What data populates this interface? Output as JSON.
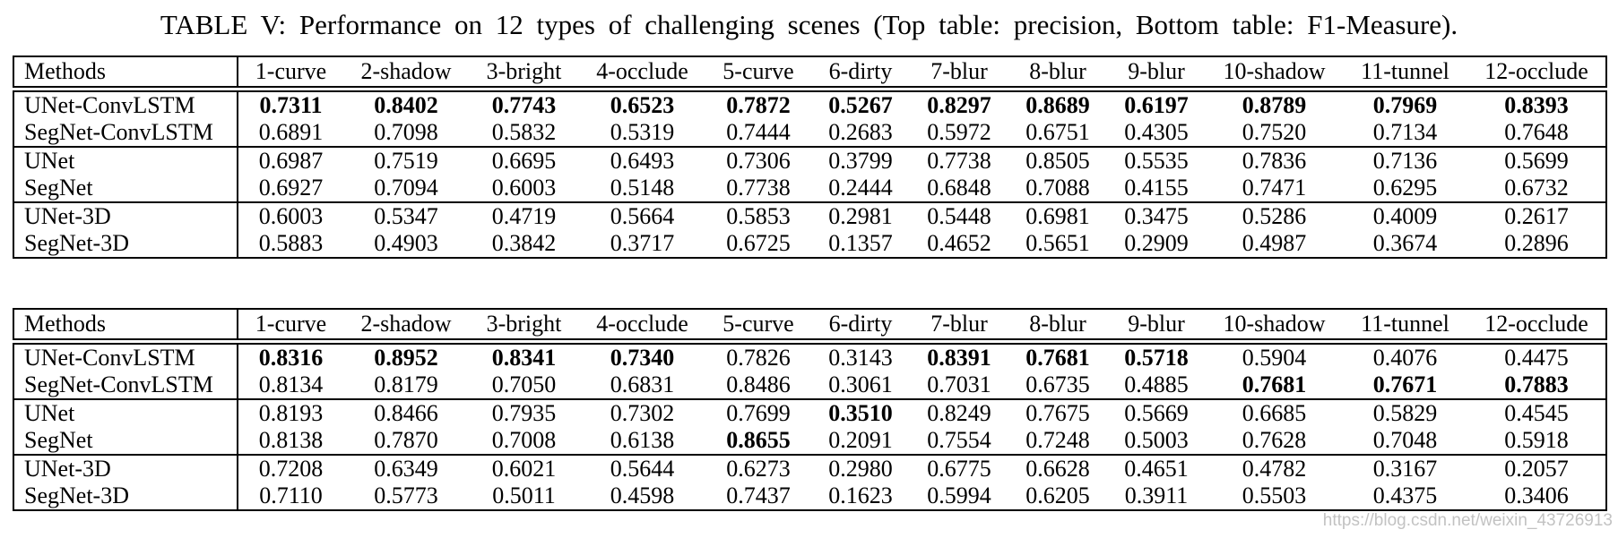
{
  "title": "TABLE V: Performance on 12 types of challenging scenes (Top table: precision, Bottom table: F1-Measure).",
  "watermark": "https://blog.csdn.net/weixin_43726913",
  "columns": [
    "Methods",
    "1-curve",
    "2-shadow",
    "3-bright",
    "4-occlude",
    "5-curve",
    "6-dirty",
    "7-blur",
    "8-blur",
    "9-blur",
    "10-shadow",
    "11-tunnel",
    "12-occlude"
  ],
  "tables": [
    {
      "metric": "precision",
      "rows": [
        {
          "method": "UNet-ConvLSTM",
          "values": [
            "0.7311",
            "0.8402",
            "0.7743",
            "0.6523",
            "0.7872",
            "0.5267",
            "0.8297",
            "0.8689",
            "0.6197",
            "0.8789",
            "0.7969",
            "0.8393"
          ],
          "bold": [
            true,
            true,
            true,
            true,
            true,
            true,
            true,
            true,
            true,
            true,
            true,
            true
          ],
          "group_start": false
        },
        {
          "method": "SegNet-ConvLSTM",
          "values": [
            "0.6891",
            "0.7098",
            "0.5832",
            "0.5319",
            "0.7444",
            "0.2683",
            "0.5972",
            "0.6751",
            "0.4305",
            "0.7520",
            "0.7134",
            "0.7648"
          ],
          "bold": [
            false,
            false,
            false,
            false,
            false,
            false,
            false,
            false,
            false,
            false,
            false,
            false
          ],
          "group_start": false
        },
        {
          "method": "UNet",
          "values": [
            "0.6987",
            "0.7519",
            "0.6695",
            "0.6493",
            "0.7306",
            "0.3799",
            "0.7738",
            "0.8505",
            "0.5535",
            "0.7836",
            "0.7136",
            "0.5699"
          ],
          "bold": [
            false,
            false,
            false,
            false,
            false,
            false,
            false,
            false,
            false,
            false,
            false,
            false
          ],
          "group_start": true
        },
        {
          "method": "SegNet",
          "values": [
            "0.6927",
            "0.7094",
            "0.6003",
            "0.5148",
            "0.7738",
            "0.2444",
            "0.6848",
            "0.7088",
            "0.4155",
            "0.7471",
            "0.6295",
            "0.6732"
          ],
          "bold": [
            false,
            false,
            false,
            false,
            false,
            false,
            false,
            false,
            false,
            false,
            false,
            false
          ],
          "group_start": false
        },
        {
          "method": "UNet-3D",
          "values": [
            "0.6003",
            "0.5347",
            "0.4719",
            "0.5664",
            "0.5853",
            "0.2981",
            "0.5448",
            "0.6981",
            "0.3475",
            "0.5286",
            "0.4009",
            "0.2617"
          ],
          "bold": [
            false,
            false,
            false,
            false,
            false,
            false,
            false,
            false,
            false,
            false,
            false,
            false
          ],
          "group_start": true
        },
        {
          "method": "SegNet-3D",
          "values": [
            "0.5883",
            "0.4903",
            "0.3842",
            "0.3717",
            "0.6725",
            "0.1357",
            "0.4652",
            "0.5651",
            "0.2909",
            "0.4987",
            "0.3674",
            "0.2896"
          ],
          "bold": [
            false,
            false,
            false,
            false,
            false,
            false,
            false,
            false,
            false,
            false,
            false,
            false
          ],
          "group_start": false
        }
      ]
    },
    {
      "metric": "F1-Measure",
      "rows": [
        {
          "method": "UNet-ConvLSTM",
          "values": [
            "0.8316",
            "0.8952",
            "0.8341",
            "0.7340",
            "0.7826",
            "0.3143",
            "0.8391",
            "0.7681",
            "0.5718",
            "0.5904",
            "0.4076",
            "0.4475"
          ],
          "bold": [
            true,
            true,
            true,
            true,
            false,
            false,
            true,
            true,
            true,
            false,
            false,
            false
          ],
          "group_start": false
        },
        {
          "method": "SegNet-ConvLSTM",
          "values": [
            "0.8134",
            "0.8179",
            "0.7050",
            "0.6831",
            "0.8486",
            "0.3061",
            "0.7031",
            "0.6735",
            "0.4885",
            "0.7681",
            "0.7671",
            "0.7883"
          ],
          "bold": [
            false,
            false,
            false,
            false,
            false,
            false,
            false,
            false,
            false,
            true,
            true,
            true
          ],
          "group_start": false
        },
        {
          "method": "UNet",
          "values": [
            "0.8193",
            "0.8466",
            "0.7935",
            "0.7302",
            "0.7699",
            "0.3510",
            "0.8249",
            "0.7675",
            "0.5669",
            "0.6685",
            "0.5829",
            "0.4545"
          ],
          "bold": [
            false,
            false,
            false,
            false,
            false,
            true,
            false,
            false,
            false,
            false,
            false,
            false
          ],
          "group_start": true
        },
        {
          "method": "SegNet",
          "values": [
            "0.8138",
            "0.7870",
            "0.7008",
            "0.6138",
            "0.8655",
            "0.2091",
            "0.7554",
            "0.7248",
            "0.5003",
            "0.7628",
            "0.7048",
            "0.5918"
          ],
          "bold": [
            false,
            false,
            false,
            false,
            true,
            false,
            false,
            false,
            false,
            false,
            false,
            false
          ],
          "group_start": false
        },
        {
          "method": "UNet-3D",
          "values": [
            "0.7208",
            "0.6349",
            "0.6021",
            "0.5644",
            "0.6273",
            "0.2980",
            "0.6775",
            "0.6628",
            "0.4651",
            "0.4782",
            "0.3167",
            "0.2057"
          ],
          "bold": [
            false,
            false,
            false,
            false,
            false,
            false,
            false,
            false,
            false,
            false,
            false,
            false
          ],
          "group_start": true
        },
        {
          "method": "SegNet-3D",
          "values": [
            "0.7110",
            "0.5773",
            "0.5011",
            "0.4598",
            "0.7437",
            "0.1623",
            "0.5994",
            "0.6205",
            "0.3911",
            "0.5503",
            "0.4375",
            "0.3406"
          ],
          "bold": [
            false,
            false,
            false,
            false,
            false,
            false,
            false,
            false,
            false,
            false,
            false,
            false
          ],
          "group_start": false
        }
      ]
    }
  ]
}
